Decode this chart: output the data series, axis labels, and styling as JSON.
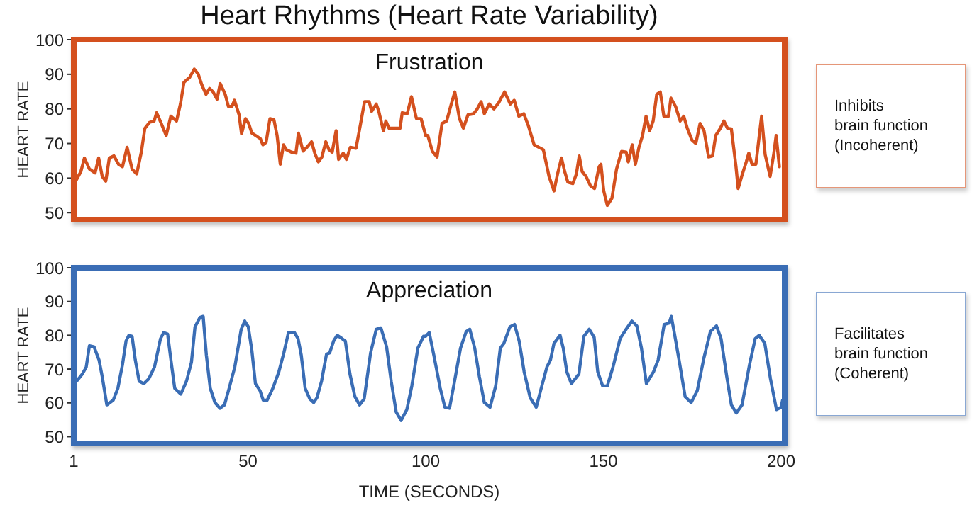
{
  "chart_data": [
    {
      "type": "line",
      "title": "Heart Rhythms (Heart Rate Variability)",
      "ylabel": "HEART RATE",
      "annotations": [
        "Frustration",
        "Inhibits\nbrain function\n(Incoherent)"
      ],
      "xlim": [
        1,
        201
      ],
      "xticks": [
        1,
        50,
        100,
        150,
        200
      ],
      "ylim": [
        48,
        100
      ],
      "yticks": [
        50,
        60,
        70,
        80,
        90,
        100
      ],
      "tick_labels": "y",
      "series": [
        {
          "color": "#d4501e",
          "x": [
            1.7,
            3,
            4,
            5.4,
            7,
            8,
            9,
            10,
            11,
            12.3,
            13.6,
            14.7,
            16,
            17.4,
            18.7,
            20,
            21,
            22.3,
            23.6,
            24.3,
            25.6,
            27,
            28.3,
            29.9,
            31,
            32,
            33.6,
            34.9,
            36,
            37,
            38.2,
            39.2,
            40.2,
            41.3,
            42.2,
            43.6,
            44.5,
            45.5,
            46.2,
            47.5,
            48.2,
            49.3,
            50.2,
            51.1,
            52.2,
            53.5,
            54.2,
            55.1,
            56.2,
            57.3,
            58.2,
            59.1,
            60,
            60.8,
            62.2,
            63.5,
            64.2,
            65.5,
            66.6,
            67.9,
            68.8,
            69.8,
            70.8,
            71.9,
            72.8,
            73.7,
            74.8,
            75.5,
            76.8,
            77.7,
            78.8,
            80.4,
            81.7,
            82.8,
            84.1,
            84.8,
            86.1,
            86.8,
            88.1,
            88.8,
            89.7,
            91,
            92.8,
            93.4,
            94.8,
            96,
            97.4,
            98.7,
            100,
            100.6,
            101.9,
            103.2,
            104.6,
            105.9,
            107.2,
            108.2,
            109.5,
            110.6,
            111.9,
            113.5,
            114.5,
            115.6,
            116.5,
            117.9,
            119.2,
            120.5,
            122.2,
            123.8,
            124.9,
            126.2,
            127.6,
            128.9,
            130.5,
            131.8,
            133.1,
            134.7,
            136.1,
            137.1,
            138.2,
            139.1,
            140,
            141.4,
            142.4,
            143.2,
            144,
            145.1,
            146.4,
            147.5,
            148.8,
            149.3,
            150.1,
            151.1,
            152.4,
            153.7,
            155.1,
            156.4,
            157,
            158.1,
            159,
            160,
            161,
            162,
            163,
            164,
            165,
            166,
            167,
            168.3,
            169,
            170.3,
            171.6,
            172.6,
            173.6,
            174.9,
            176,
            177.2,
            178.3,
            179.6,
            180.7,
            181.6,
            182.9,
            183.9,
            184.9,
            186,
            187.3,
            187.9,
            188.9,
            190.2,
            190.9,
            191.8,
            192.9,
            194.5,
            195.5,
            196.9,
            197.9,
            198.6,
            199.5
          ],
          "values": [
            59.4,
            61.9,
            65.8,
            62.6,
            61.5,
            65.8,
            60.5,
            59.1,
            65.8,
            66.4,
            64,
            63.3,
            68.9,
            62.6,
            61.2,
            67.5,
            74.4,
            76.1,
            76.5,
            78.9,
            75.8,
            72.3,
            77.9,
            76.5,
            81.4,
            87.7,
            89.1,
            91.5,
            90.1,
            87,
            84.2,
            85.9,
            84.9,
            82.8,
            87.3,
            84.2,
            80.7,
            80.7,
            82.5,
            78.3,
            72.8,
            77.2,
            75.8,
            73,
            72.3,
            71.4,
            69.6,
            70.3,
            77.2,
            76.9,
            72.3,
            64,
            69.6,
            68.2,
            67.5,
            67.2,
            73,
            67.8,
            68.9,
            70.5,
            67.2,
            64.7,
            66.1,
            70.5,
            68.2,
            67.5,
            73.7,
            65.4,
            67.2,
            65.4,
            68.9,
            68.6,
            75.8,
            82.1,
            82.1,
            79.3,
            81.4,
            79.3,
            73.7,
            76.5,
            74.4,
            74.4,
            74.4,
            78.9,
            78.6,
            83.5,
            77.2,
            77.2,
            72.3,
            72.3,
            67.7,
            66.1,
            75.8,
            76.5,
            81.4,
            84.9,
            77.2,
            74.4,
            78.3,
            78.6,
            80,
            82.1,
            78.6,
            81.4,
            80,
            81.7,
            84.9,
            81.4,
            82.5,
            77.9,
            78.6,
            75.1,
            69.6,
            68.9,
            68.2,
            60.5,
            56.3,
            61.2,
            65.8,
            61.9,
            58.8,
            58.4,
            61.2,
            66.4,
            61.9,
            60.5,
            57.7,
            57,
            63.3,
            64,
            56.3,
            52.1,
            54.2,
            62.6,
            67.7,
            67.5,
            64.7,
            69.6,
            64,
            68.9,
            72.3,
            77.9,
            73.7,
            76.5,
            84.2,
            84.9,
            77.9,
            77.9,
            83.1,
            80.7,
            76.5,
            77.9,
            74.4,
            71,
            70,
            75.8,
            73.7,
            66.1,
            66.4,
            72.3,
            74.4,
            76.5,
            74.4,
            74.2,
            63.3,
            57,
            60.5,
            64.7,
            67.2,
            64,
            64,
            77.9,
            66.8,
            60.5,
            66.8,
            72.3,
            63.3
          ]
        }
      ]
    },
    {
      "type": "line",
      "xlabel": "TIME (SECONDS)",
      "ylabel": "HEART RATE",
      "annotations": [
        "Appreciation",
        "Facilitates\nbrain function\n(Coherent)"
      ],
      "xlim": [
        1,
        201
      ],
      "xticks": [
        1,
        50,
        100,
        150,
        200
      ],
      "ylim": [
        48,
        100
      ],
      "yticks": [
        50,
        60,
        70,
        80,
        90,
        100
      ],
      "series": [
        {
          "color": "#3a6db5",
          "x": [
            1.8,
            3.4,
            4.5,
            5.4,
            6.7,
            8.1,
            9,
            10.3,
            12.1,
            13.4,
            14.7,
            15.7,
            16.5,
            17.4,
            18.3,
            19.4,
            20.7,
            22.1,
            23.7,
            25.4,
            26.3,
            27.4,
            28.5,
            29.4,
            31.1,
            32.7,
            34.1,
            35.1,
            36.5,
            37.4,
            38.3,
            39.4,
            40.7,
            42.1,
            43.4,
            44.7,
            46.3,
            48.1,
            49.1,
            50.1,
            51.1,
            52.1,
            53.4,
            54.3,
            55.4,
            57,
            58.7,
            60.1,
            61.4,
            63.1,
            64.1,
            65,
            66.1,
            67.4,
            68.5,
            69.4,
            70.7,
            72.1,
            73,
            74.1,
            75.1,
            76.5,
            77.4,
            78.7,
            80.1,
            81.4,
            82.7,
            84.5,
            86.1,
            87.4,
            89,
            90.3,
            91.7,
            93.1,
            94.7,
            96.1,
            97.8,
            99.4,
            100,
            101,
            102.3,
            104.1,
            105.4,
            106.7,
            108,
            109.8,
            111.4,
            112.4,
            113.8,
            115.1,
            116.5,
            118.1,
            119.7,
            121,
            122,
            123.7,
            125,
            126.3,
            127.7,
            129.4,
            131.1,
            132.5,
            134.1,
            135.1,
            136.1,
            137.8,
            138.7,
            139.7,
            141,
            143.1,
            144.5,
            146,
            147.4,
            148.4,
            149.8,
            151.1,
            152.7,
            154.7,
            156.4,
            158,
            159.4,
            160.7,
            162.1,
            164.1,
            165.4,
            167.1,
            168.5,
            169.1,
            170,
            171.4,
            173,
            174.7,
            176.4,
            178.3,
            180.1,
            181.8,
            183.1,
            184.7,
            186,
            187.4,
            189,
            191.1,
            192.7,
            193.8,
            195.4,
            197,
            198.7,
            200,
            200.4
          ],
          "values": [
            66.4,
            68.5,
            70.6,
            76.9,
            76.6,
            72.7,
            67.8,
            59.4,
            60.8,
            64.3,
            71.3,
            78.3,
            80,
            79.7,
            72.7,
            66.4,
            65.7,
            67.1,
            70.6,
            79,
            80.8,
            80.4,
            71.3,
            64.3,
            62.6,
            66.4,
            72,
            82.5,
            85.3,
            85.6,
            74.1,
            64.3,
            60.1,
            58.4,
            59.4,
            64.3,
            70.6,
            81.8,
            84.2,
            82.5,
            75.5,
            65.7,
            63.6,
            60.8,
            60.8,
            64.3,
            69.2,
            74.8,
            80.8,
            80.8,
            79,
            74.1,
            64.3,
            61.2,
            60.1,
            61.5,
            66.4,
            74.4,
            74.8,
            78.3,
            80,
            79,
            78.3,
            68.5,
            61.8,
            59.4,
            61.2,
            74.8,
            81.8,
            82.2,
            76.6,
            66.4,
            57.3,
            54.8,
            58,
            65,
            76.2,
            79.7,
            79.7,
            80.8,
            74.1,
            64.3,
            58.7,
            58.4,
            65.7,
            76.2,
            81.1,
            81.8,
            76.2,
            67.8,
            60.1,
            58.7,
            65,
            76.2,
            77.6,
            82.5,
            83.2,
            78.3,
            69.2,
            61.5,
            58.7,
            64.3,
            70.6,
            72.7,
            77.6,
            80,
            76.2,
            69.2,
            65.7,
            68.5,
            79.7,
            81.8,
            79.4,
            69.2,
            65,
            65,
            70.6,
            79,
            81.8,
            84.2,
            82.8,
            76.2,
            65.7,
            69.2,
            72.7,
            83.2,
            83.6,
            85.6,
            80.4,
            72,
            61.8,
            60.1,
            63.6,
            73.4,
            81.1,
            82.8,
            79,
            67.8,
            59.4,
            57,
            59.4,
            71.3,
            79,
            80,
            77.6,
            67.1,
            58,
            58.7,
            60.8
          ]
        }
      ]
    }
  ]
}
